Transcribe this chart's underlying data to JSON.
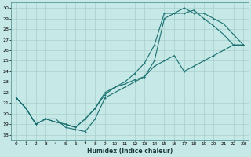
{
  "title": "",
  "xlabel": "Humidex (Indice chaleur)",
  "ylabel": "",
  "bg_color": "#c6e8e6",
  "grid_color": "#a8d0ce",
  "line_color": "#1a7070",
  "xlim": [
    -0.5,
    23.5
  ],
  "ylim": [
    17.5,
    30.5
  ],
  "xticks": [
    0,
    1,
    2,
    3,
    4,
    5,
    6,
    7,
    8,
    9,
    10,
    11,
    12,
    13,
    14,
    15,
    16,
    17,
    18,
    19,
    20,
    21,
    22,
    23
  ],
  "yticks": [
    18,
    19,
    20,
    21,
    22,
    23,
    24,
    25,
    26,
    27,
    28,
    29,
    30
  ],
  "line1_x": [
    0,
    1,
    2,
    3,
    4,
    5,
    6,
    7,
    8,
    9,
    10,
    11,
    12,
    13,
    14,
    15,
    16,
    17,
    18,
    19,
    20,
    21,
    22,
    23
  ],
  "line1_y": [
    21.5,
    20.5,
    19.0,
    19.5,
    19.5,
    18.7,
    18.5,
    18.3,
    19.5,
    21.5,
    22.0,
    22.5,
    23.0,
    23.5,
    24.5,
    25.0,
    25.5,
    24.0,
    24.5,
    25.0,
    25.5,
    26.0,
    26.5,
    26.5
  ],
  "line2_x": [
    0,
    1,
    2,
    3,
    4,
    5,
    6,
    7,
    8,
    9,
    10,
    11,
    12,
    13,
    14,
    15,
    16,
    17,
    18,
    19,
    20,
    21,
    22,
    23
  ],
  "line2_y": [
    21.5,
    20.5,
    19.0,
    19.5,
    19.2,
    19.0,
    18.7,
    19.5,
    20.5,
    21.8,
    22.5,
    22.8,
    23.2,
    23.5,
    25.0,
    29.0,
    29.5,
    29.5,
    29.8,
    29.0,
    28.3,
    27.5,
    26.5,
    26.5
  ],
  "line3_x": [
    0,
    1,
    2,
    3,
    4,
    5,
    6,
    7,
    8,
    9,
    10,
    11,
    12,
    13,
    14,
    15,
    16,
    17,
    18,
    19,
    20,
    21,
    22,
    23
  ],
  "line3_y": [
    21.5,
    20.5,
    19.0,
    19.5,
    19.2,
    19.0,
    18.7,
    19.5,
    20.5,
    22.0,
    22.5,
    23.0,
    23.8,
    24.8,
    26.5,
    29.5,
    29.5,
    30.0,
    29.5,
    29.5,
    29.0,
    28.5,
    27.5,
    26.5
  ]
}
